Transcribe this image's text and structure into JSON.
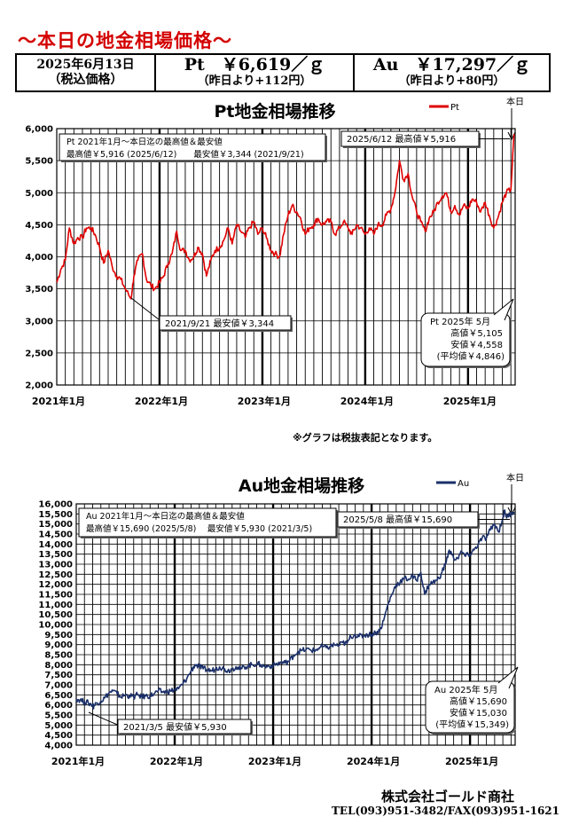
{
  "header": {
    "title": "～本日の地金相場価格～",
    "date": "2025年6月13日",
    "tax_note": "（税込価格）",
    "pt_price": "Pt　￥6,619／ｇ",
    "pt_change": "（昨日より+112円）",
    "au_price": "Au　￥17,297／ｇ",
    "au_change": "（昨日より+80円）"
  },
  "footer": {
    "note": "※グラフは税抜表記となります。",
    "company": "株式会社ゴールド商社",
    "tel": "TEL(093)951-3482/FAX(093)951-1621"
  },
  "chart_data": [
    {
      "type": "line",
      "title": "Pt地金相場推移",
      "color": "#e00000",
      "legend": "Pt",
      "legend_position": "top-right",
      "today_label": "本日",
      "x_ticks": [
        "2021年1月",
        "2022年1月",
        "2023年1月",
        "2024年1月",
        "2025年1月"
      ],
      "ylim": [
        2000,
        6000
      ],
      "y_ticks": [
        "2,000",
        "2,500",
        "3,000",
        "3,500",
        "4,000",
        "4,500",
        "5,000",
        "5,500",
        "6,000"
      ],
      "grid": true,
      "x_start": "2021-01",
      "x_end": "2025-06",
      "points": [
        [
          "2021-01",
          3600
        ],
        [
          "2021-01-15",
          3800
        ],
        [
          "2021-02",
          3950
        ],
        [
          "2021-02-15",
          4450
        ],
        [
          "2021-03",
          4200
        ],
        [
          "2021-03-15",
          4300
        ],
        [
          "2021-04",
          4300
        ],
        [
          "2021-04-15",
          4450
        ],
        [
          "2021-05",
          4450
        ],
        [
          "2021-05-15",
          4350
        ],
        [
          "2021-06",
          4150
        ],
        [
          "2021-06-15",
          3900
        ],
        [
          "2021-07",
          4100
        ],
        [
          "2021-07-15",
          3850
        ],
        [
          "2021-08",
          3700
        ],
        [
          "2021-08-15",
          3650
        ],
        [
          "2021-09",
          3500
        ],
        [
          "2021-09-21",
          3344
        ],
        [
          "2021-10",
          3700
        ],
        [
          "2021-10-15",
          3950
        ],
        [
          "2021-11",
          4050
        ],
        [
          "2021-11-15",
          3650
        ],
        [
          "2021-12",
          3550
        ],
        [
          "2021-12-15",
          3500
        ],
        [
          "2022-01",
          3600
        ],
        [
          "2022-01-15",
          3700
        ],
        [
          "2022-02",
          3900
        ],
        [
          "2022-02-15",
          4050
        ],
        [
          "2022-03",
          4400
        ],
        [
          "2022-03-15",
          4100
        ],
        [
          "2022-04",
          4100
        ],
        [
          "2022-04-15",
          3950
        ],
        [
          "2022-05",
          4000
        ],
        [
          "2022-05-15",
          4150
        ],
        [
          "2022-06",
          4050
        ],
        [
          "2022-06-15",
          3700
        ],
        [
          "2022-07",
          3950
        ],
        [
          "2022-07-15",
          4100
        ],
        [
          "2022-08",
          4150
        ],
        [
          "2022-08-15",
          4250
        ],
        [
          "2022-09",
          4450
        ],
        [
          "2022-09-15",
          4200
        ],
        [
          "2022-10",
          4500
        ],
        [
          "2022-10-15",
          4400
        ],
        [
          "2022-11",
          4300
        ],
        [
          "2022-11-15",
          4450
        ],
        [
          "2022-12",
          4550
        ],
        [
          "2022-12-15",
          4350
        ],
        [
          "2023-01",
          4450
        ],
        [
          "2023-01-15",
          4300
        ],
        [
          "2023-02",
          4100
        ],
        [
          "2023-02-15",
          4050
        ],
        [
          "2023-03",
          4000
        ],
        [
          "2023-03-15",
          4350
        ],
        [
          "2023-04",
          4650
        ],
        [
          "2023-04-15",
          4800
        ],
        [
          "2023-05",
          4700
        ],
        [
          "2023-05-15",
          4600
        ],
        [
          "2023-06",
          4350
        ],
        [
          "2023-06-15",
          4450
        ],
        [
          "2023-07",
          4500
        ],
        [
          "2023-07-15",
          4600
        ],
        [
          "2023-08",
          4500
        ],
        [
          "2023-08-15",
          4550
        ],
        [
          "2023-09",
          4550
        ],
        [
          "2023-09-15",
          4350
        ],
        [
          "2023-10",
          4450
        ],
        [
          "2023-10-15",
          4550
        ],
        [
          "2023-11",
          4450
        ],
        [
          "2023-11-15",
          4350
        ],
        [
          "2023-12",
          4500
        ],
        [
          "2023-12-15",
          4450
        ],
        [
          "2024-01",
          4350
        ],
        [
          "2024-01-15",
          4450
        ],
        [
          "2024-02",
          4350
        ],
        [
          "2024-02-15",
          4500
        ],
        [
          "2024-03",
          4500
        ],
        [
          "2024-03-15",
          4650
        ],
        [
          "2024-04",
          4750
        ],
        [
          "2024-04-15",
          5000
        ],
        [
          "2024-05",
          5500
        ],
        [
          "2024-05-15",
          5200
        ],
        [
          "2024-06",
          5300
        ],
        [
          "2024-06-15",
          4950
        ],
        [
          "2024-07",
          4700
        ],
        [
          "2024-07-15",
          4550
        ],
        [
          "2024-08",
          4400
        ],
        [
          "2024-08-15",
          4600
        ],
        [
          "2024-09",
          4700
        ],
        [
          "2024-09-15",
          4850
        ],
        [
          "2024-10",
          4950
        ],
        [
          "2024-10-15",
          5000
        ],
        [
          "2024-11",
          4700
        ],
        [
          "2024-11-15",
          4800
        ],
        [
          "2024-12",
          4650
        ],
        [
          "2024-12-15",
          4800
        ],
        [
          "2025-01",
          4750
        ],
        [
          "2025-01-15",
          4900
        ],
        [
          "2025-02",
          4850
        ],
        [
          "2025-02-15",
          4700
        ],
        [
          "2025-03",
          4850
        ],
        [
          "2025-03-15",
          4650
        ],
        [
          "2025-04",
          4450
        ],
        [
          "2025-04-15",
          4600
        ],
        [
          "2025-05",
          4850
        ],
        [
          "2025-05-15",
          5000
        ],
        [
          "2025-06",
          5050
        ],
        [
          "2025-06-12",
          5916
        ]
      ],
      "max_box": {
        "line1": "Pt  2021年1月～本日迄の最高値＆最安値",
        "line2": "最高値￥5,916 (2025/6/12)　　最安値￥3,344 (2021/9/21)"
      },
      "high_callout": "2025/6/12 最高値￥5,916",
      "low_callout": "2021/9/21 最安値￥3,344",
      "month_box": {
        "title": "Pt  2025年 5月",
        "high": "高値￥5,105",
        "low": "安値￥4,558",
        "avg": "(平均値￥4,846)"
      }
    },
    {
      "type": "line",
      "title": "Au地金相場推移",
      "color": "#1a2f6a",
      "legend": "Au",
      "legend_position": "top-right",
      "today_label": "本日",
      "x_ticks": [
        "2021年1月",
        "2022年1月",
        "2023年1月",
        "2024年1月",
        "2025年1月"
      ],
      "ylim": [
        4000,
        16000
      ],
      "y_ticks": [
        "4,000",
        "4,500",
        "5,000",
        "5,500",
        "6,000",
        "6,500",
        "7,000",
        "7,500",
        "8,000",
        "8,500",
        "9,000",
        "9,500",
        "10,000",
        "10,500",
        "11,000",
        "11,500",
        "12,000",
        "12,500",
        "13,000",
        "13,500",
        "14,000",
        "14,500",
        "15,000",
        "15,500",
        "16,000"
      ],
      "grid": true,
      "x_start": "2021-01",
      "x_end": "2025-06",
      "points": [
        [
          "2021-01",
          6300
        ],
        [
          "2021-01-15",
          6250
        ],
        [
          "2021-02",
          6150
        ],
        [
          "2021-02-15",
          6100
        ],
        [
          "2021-03",
          6000
        ],
        [
          "2021-03-05",
          5930
        ],
        [
          "2021-03-15",
          6100
        ],
        [
          "2021-04",
          6200
        ],
        [
          "2021-04-15",
          6350
        ],
        [
          "2021-05",
          6600
        ],
        [
          "2021-05-15",
          6700
        ],
        [
          "2021-06",
          6550
        ],
        [
          "2021-06-15",
          6400
        ],
        [
          "2021-07",
          6500
        ],
        [
          "2021-07-15",
          6450
        ],
        [
          "2021-08",
          6400
        ],
        [
          "2021-08-15",
          6500
        ],
        [
          "2021-09",
          6400
        ],
        [
          "2021-09-15",
          6450
        ],
        [
          "2021-10",
          6450
        ],
        [
          "2021-10-15",
          6550
        ],
        [
          "2021-11",
          6700
        ],
        [
          "2021-11-15",
          6650
        ],
        [
          "2021-12",
          6650
        ],
        [
          "2021-12-15",
          6700
        ],
        [
          "2022-01",
          6750
        ],
        [
          "2022-01-15",
          6800
        ],
        [
          "2022-02",
          7050
        ],
        [
          "2022-02-15",
          7300
        ],
        [
          "2022-03",
          7700
        ],
        [
          "2022-03-15",
          8000
        ],
        [
          "2022-04",
          7900
        ],
        [
          "2022-04-15",
          7800
        ],
        [
          "2022-05",
          7750
        ],
        [
          "2022-05-15",
          7700
        ],
        [
          "2022-06",
          7800
        ],
        [
          "2022-06-15",
          7900
        ],
        [
          "2022-07",
          7800
        ],
        [
          "2022-07-15",
          7700
        ],
        [
          "2022-08",
          7800
        ],
        [
          "2022-08-15",
          7900
        ],
        [
          "2022-09",
          7750
        ],
        [
          "2022-09-15",
          7900
        ],
        [
          "2022-10",
          7950
        ],
        [
          "2022-10-15",
          8000
        ],
        [
          "2022-11",
          8050
        ],
        [
          "2022-11-15",
          8000
        ],
        [
          "2022-12",
          7900
        ],
        [
          "2022-12-15",
          7950
        ],
        [
          "2023-01",
          7950
        ],
        [
          "2023-01-15",
          8050
        ],
        [
          "2023-02",
          8100
        ],
        [
          "2023-02-15",
          8100
        ],
        [
          "2023-03",
          8200
        ],
        [
          "2023-03-15",
          8450
        ],
        [
          "2023-04",
          8650
        ],
        [
          "2023-04-15",
          8700
        ],
        [
          "2023-05",
          8750
        ],
        [
          "2023-05-15",
          8750
        ],
        [
          "2023-06",
          8700
        ],
        [
          "2023-06-15",
          8800
        ],
        [
          "2023-07",
          8900
        ],
        [
          "2023-07-15",
          8850
        ],
        [
          "2023-08",
          8900
        ],
        [
          "2023-08-15",
          9000
        ],
        [
          "2023-09",
          8950
        ],
        [
          "2023-09-15",
          9100
        ],
        [
          "2023-10",
          9050
        ],
        [
          "2023-10-15",
          9400
        ],
        [
          "2023-11",
          9500
        ],
        [
          "2023-11-15",
          9400
        ],
        [
          "2023-12",
          9450
        ],
        [
          "2023-12-15",
          9500
        ],
        [
          "2024-01",
          9500
        ],
        [
          "2024-01-15",
          9600
        ],
        [
          "2024-02",
          9700
        ],
        [
          "2024-02-15",
          10200
        ],
        [
          "2024-03",
          11000
        ],
        [
          "2024-03-15",
          11500
        ],
        [
          "2024-04",
          12000
        ],
        [
          "2024-04-15",
          12100
        ],
        [
          "2024-05",
          12300
        ],
        [
          "2024-05-15",
          12250
        ],
        [
          "2024-06",
          12400
        ],
        [
          "2024-06-15",
          12200
        ],
        [
          "2024-07",
          12600
        ],
        [
          "2024-07-15",
          11500
        ],
        [
          "2024-08",
          12000
        ],
        [
          "2024-08-15",
          12100
        ],
        [
          "2024-09",
          12200
        ],
        [
          "2024-09-15",
          12500
        ],
        [
          "2024-10",
          13000
        ],
        [
          "2024-10-15",
          13700
        ],
        [
          "2024-11",
          13300
        ],
        [
          "2024-11-15",
          13300
        ],
        [
          "2024-12",
          13600
        ],
        [
          "2024-12-15",
          13400
        ],
        [
          "2025-01",
          13500
        ],
        [
          "2025-01-15",
          13700
        ],
        [
          "2025-02",
          14000
        ],
        [
          "2025-02-15",
          14300
        ],
        [
          "2025-03",
          14300
        ],
        [
          "2025-03-15",
          14700
        ],
        [
          "2025-04",
          15000
        ],
        [
          "2025-04-15",
          14600
        ],
        [
          "2025-05",
          15300
        ],
        [
          "2025-05-08",
          15690
        ],
        [
          "2025-05-15",
          15300
        ],
        [
          "2025-06",
          15550
        ],
        [
          "2025-06-12",
          15600
        ]
      ],
      "max_box": {
        "line1": "Au  2021年1月～本日迄の最高値＆最安値",
        "line2": "最高値￥15,690 (2025/5/8)　 最安値￥5,930 (2021/3/5)"
      },
      "high_callout": "2025/5/8 最高値￥15,690",
      "low_callout": "2021/3/5 最安値￥5,930",
      "month_box": {
        "title": "Au  2025年 5月",
        "high": "高値￥15,690",
        "low": "安値￥15,030",
        "avg": "(平均値￥15,349)"
      }
    }
  ]
}
